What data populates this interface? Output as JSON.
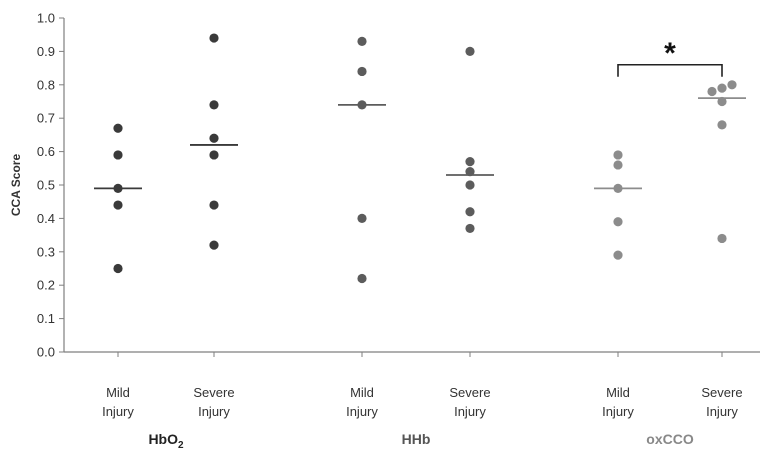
{
  "chart_data": {
    "type": "scatter",
    "ylabel": "CCA Score",
    "ylim": [
      0,
      1.0
    ],
    "yticks": [
      "0.0",
      "0.1",
      "0.2",
      "0.3",
      "0.4",
      "0.5",
      "0.6",
      "0.7",
      "0.8",
      "0.9",
      "1.0"
    ],
    "grid": false,
    "categories": [
      {
        "label_line1": "Mild",
        "label_line2": "Injury",
        "group": "HbO2",
        "values": [
          0.25,
          0.44,
          0.49,
          0.59,
          0.67
        ],
        "median": 0.49,
        "color": "#3a3a3a"
      },
      {
        "label_line1": "Severe",
        "label_line2": "Injury",
        "group": "HbO2",
        "values": [
          0.32,
          0.44,
          0.59,
          0.64,
          0.74,
          0.94
        ],
        "median": 0.62,
        "color": "#3a3a3a"
      },
      {
        "label_line1": "Mild",
        "label_line2": "Injury",
        "group": "HHb",
        "values": [
          0.22,
          0.4,
          0.74,
          0.84,
          0.93
        ],
        "median": 0.74,
        "color": "#5c5c5c"
      },
      {
        "label_line1": "Severe",
        "label_line2": "Injury",
        "group": "HHb",
        "values": [
          0.37,
          0.42,
          0.5,
          0.54,
          0.57,
          0.9
        ],
        "median": 0.53,
        "color": "#5c5c5c"
      },
      {
        "label_line1": "Mild",
        "label_line2": "Injury",
        "group": "oxCCO",
        "values": [
          0.29,
          0.39,
          0.49,
          0.56,
          0.59
        ],
        "median": 0.49,
        "color": "#8c8c8c"
      },
      {
        "label_line1": "Severe",
        "label_line2": "Injury",
        "group": "oxCCO",
        "values": [
          0.34,
          0.68,
          0.75,
          0.78,
          0.79,
          0.8
        ],
        "median": 0.76,
        "color": "#8c8c8c"
      }
    ],
    "groups": [
      {
        "main": "HbO",
        "sub": "2",
        "color": "#222222"
      },
      {
        "main": "HHb",
        "sub": "",
        "color": "#555555"
      },
      {
        "main": "oxCCO",
        "sub": "",
        "color": "#888888"
      }
    ],
    "annotation": {
      "text": "*",
      "between": [
        4,
        5
      ],
      "y": 0.86
    }
  }
}
